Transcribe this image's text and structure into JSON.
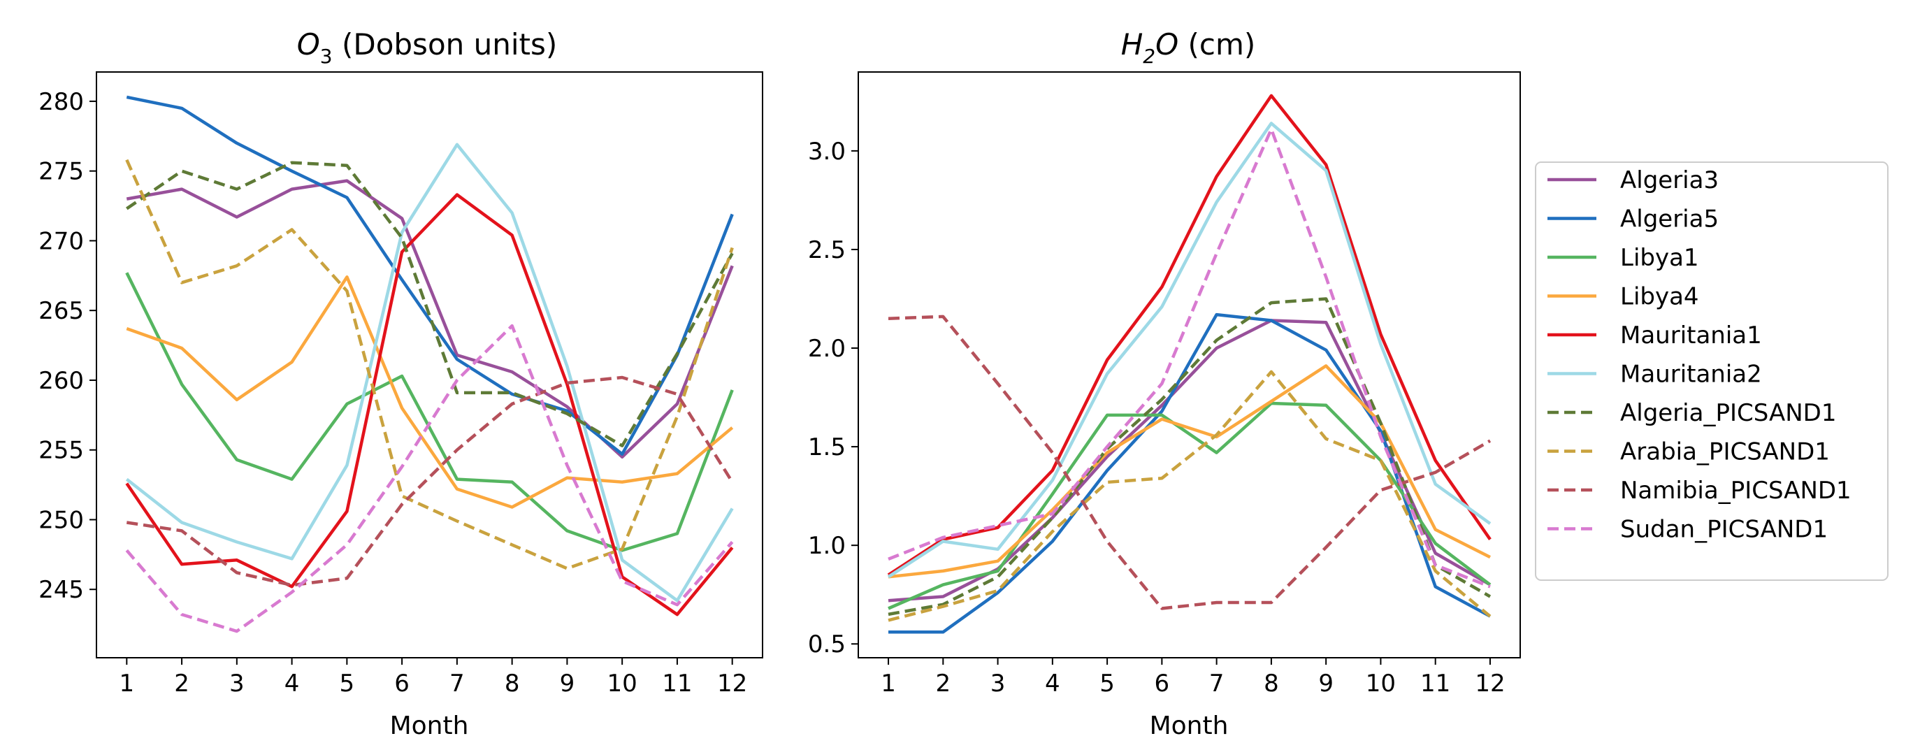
{
  "figure": {
    "description_free": true
  },
  "chart_data": [
    {
      "type": "line",
      "title_base": "O",
      "title_sub": "3",
      "title_rest": " (Dobson units)",
      "xlabel": "Month",
      "ylabel": "",
      "x": [
        1,
        2,
        3,
        4,
        5,
        6,
        7,
        8,
        9,
        10,
        11,
        12
      ],
      "xlim": [
        0.45,
        12.55
      ],
      "ylim": [
        240.1,
        282.1
      ],
      "yticks": [
        245,
        250,
        255,
        260,
        265,
        270,
        275,
        280
      ],
      "grid": false,
      "series": [
        {
          "name": "Algeria3",
          "color": "#98509a",
          "dash": "solid",
          "values": [
            273.0,
            273.7,
            271.7,
            273.7,
            274.3,
            271.6,
            261.8,
            260.6,
            258.1,
            254.5,
            258.3,
            268.2
          ]
        },
        {
          "name": "Algeria5",
          "color": "#1f6fbf",
          "dash": "solid",
          "values": [
            280.3,
            279.5,
            277.0,
            275.0,
            273.1,
            267.2,
            261.5,
            259.0,
            257.8,
            254.7,
            261.8,
            271.9
          ]
        },
        {
          "name": "Libya1",
          "color": "#55b560",
          "dash": "solid",
          "values": [
            267.7,
            259.7,
            254.3,
            252.9,
            258.3,
            260.3,
            252.9,
            252.7,
            249.2,
            247.8,
            249.0,
            259.3
          ]
        },
        {
          "name": "Libya4",
          "color": "#fba83e",
          "dash": "solid",
          "values": [
            263.7,
            262.3,
            258.6,
            261.3,
            267.4,
            258.0,
            252.2,
            250.9,
            253.0,
            252.7,
            253.3,
            256.6
          ]
        },
        {
          "name": "Mauritania1",
          "color": "#e3121b",
          "dash": "solid",
          "values": [
            252.6,
            246.8,
            247.1,
            245.2,
            250.6,
            269.2,
            273.3,
            270.4,
            259.7,
            245.9,
            243.2,
            248.0
          ]
        },
        {
          "name": "Mauritania2",
          "color": "#9dd9e6",
          "dash": "solid",
          "values": [
            252.9,
            249.8,
            248.4,
            247.2,
            253.9,
            270.6,
            276.9,
            272.0,
            261.0,
            247.1,
            244.2,
            250.8
          ]
        },
        {
          "name": "Algeria_PICSAND1",
          "color": "#5e7a36",
          "dash": "dashed",
          "values": [
            272.3,
            275.0,
            273.7,
            275.6,
            275.4,
            270.2,
            259.1,
            259.1,
            257.6,
            255.3,
            261.9,
            269.1
          ]
        },
        {
          "name": "Arabia_PICSAND1",
          "color": "#c9a23e",
          "dash": "dashed",
          "values": [
            275.8,
            267.0,
            268.2,
            270.8,
            266.4,
            251.7,
            249.9,
            248.2,
            246.5,
            247.9,
            257.4,
            269.5
          ]
        },
        {
          "name": "Namibia_PICSAND1",
          "color": "#b5505a",
          "dash": "dashed",
          "values": [
            249.8,
            249.2,
            246.2,
            245.3,
            245.8,
            251.1,
            255.0,
            258.3,
            259.8,
            260.2,
            259.0,
            252.7
          ]
        },
        {
          "name": "Sudan_PICSAND1",
          "color": "#d87ad0",
          "dash": "dashed",
          "values": [
            247.8,
            243.2,
            242.0,
            244.8,
            248.2,
            253.8,
            260.0,
            263.9,
            253.9,
            245.6,
            243.9,
            248.4
          ]
        }
      ]
    },
    {
      "type": "line",
      "title_base": "H",
      "title_sub": "2",
      "title_rest": "O",
      "title_unit": " (cm)",
      "xlabel": "Month",
      "ylabel": "",
      "x": [
        1,
        2,
        3,
        4,
        5,
        6,
        7,
        8,
        9,
        10,
        11,
        12
      ],
      "xlim": [
        0.45,
        12.55
      ],
      "ylim": [
        0.43,
        3.4
      ],
      "yticks": [
        0.5,
        1.0,
        1.5,
        2.0,
        2.5,
        3.0
      ],
      "grid": false,
      "series": [
        {
          "name": "Algeria3",
          "color": "#98509a",
          "dash": "solid",
          "values": [
            0.72,
            0.74,
            0.88,
            1.14,
            1.45,
            1.71,
            2.0,
            2.14,
            2.13,
            1.57,
            0.96,
            0.8
          ]
        },
        {
          "name": "Algeria5",
          "color": "#1f6fbf",
          "dash": "solid",
          "values": [
            0.56,
            0.56,
            0.76,
            1.02,
            1.38,
            1.68,
            2.17,
            2.14,
            1.99,
            1.58,
            0.79,
            0.64
          ]
        },
        {
          "name": "Libya1",
          "color": "#55b560",
          "dash": "solid",
          "values": [
            0.68,
            0.8,
            0.87,
            1.26,
            1.66,
            1.66,
            1.47,
            1.72,
            1.71,
            1.43,
            1.01,
            0.8
          ]
        },
        {
          "name": "Libya4",
          "color": "#fba83e",
          "dash": "solid",
          "values": [
            0.84,
            0.87,
            0.92,
            1.18,
            1.47,
            1.64,
            1.55,
            1.73,
            1.91,
            1.62,
            1.08,
            0.94
          ]
        },
        {
          "name": "Mauritania1",
          "color": "#e3121b",
          "dash": "solid",
          "values": [
            0.85,
            1.03,
            1.09,
            1.38,
            1.94,
            2.31,
            2.87,
            3.28,
            2.93,
            2.07,
            1.43,
            1.03
          ]
        },
        {
          "name": "Mauritania2",
          "color": "#9dd9e6",
          "dash": "solid",
          "values": [
            0.84,
            1.02,
            0.98,
            1.33,
            1.87,
            2.21,
            2.74,
            3.14,
            2.9,
            2.02,
            1.31,
            1.11
          ]
        },
        {
          "name": "Algeria_PICSAND1",
          "color": "#5e7a36",
          "dash": "dashed",
          "values": [
            0.65,
            0.7,
            0.84,
            1.14,
            1.49,
            1.74,
            2.04,
            2.23,
            2.25,
            1.62,
            0.9,
            0.74
          ]
        },
        {
          "name": "Arabia_PICSAND1",
          "color": "#c9a23e",
          "dash": "dashed",
          "values": [
            0.62,
            0.69,
            0.77,
            1.07,
            1.32,
            1.34,
            1.56,
            1.88,
            1.54,
            1.43,
            0.87,
            0.64
          ]
        },
        {
          "name": "Namibia_PICSAND1",
          "color": "#b5505a",
          "dash": "dashed",
          "values": [
            2.15,
            2.16,
            1.82,
            1.47,
            1.02,
            0.68,
            0.71,
            0.71,
            0.99,
            1.28,
            1.37,
            1.53
          ]
        },
        {
          "name": "Sudan_PICSAND1",
          "color": "#d87ad0",
          "dash": "dashed",
          "values": [
            0.93,
            1.04,
            1.1,
            1.16,
            1.5,
            1.82,
            2.48,
            3.11,
            2.36,
            1.55,
            0.9,
            0.79
          ]
        }
      ]
    }
  ]
}
